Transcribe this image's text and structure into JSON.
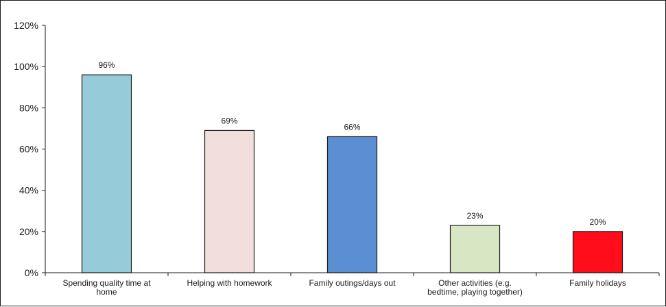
{
  "chart_data": {
    "type": "bar",
    "categories": [
      [
        "Spending quality time at",
        "home"
      ],
      [
        "Helping with homework"
      ],
      [
        "Family outings/days out"
      ],
      [
        "Other activities (e.g.",
        "bedtime, playing together)"
      ],
      [
        "Family holidays"
      ]
    ],
    "values": [
      96,
      69,
      66,
      23,
      20
    ],
    "value_labels": [
      "96%",
      "69%",
      "66%",
      "23%",
      "20%"
    ],
    "colors": [
      "#96cbd9",
      "#f2dedd",
      "#5b8fd3",
      "#d9e6c3",
      "#ff0d1a"
    ],
    "ylim": [
      0,
      120
    ],
    "yticks": [
      0,
      20,
      40,
      60,
      80,
      100,
      120
    ],
    "ytick_labels": [
      "0%",
      "20%",
      "40%",
      "60%",
      "80%",
      "100%",
      "120%"
    ],
    "grid": false,
    "legend": "none",
    "title": "",
    "xlabel": "",
    "ylabel": ""
  }
}
